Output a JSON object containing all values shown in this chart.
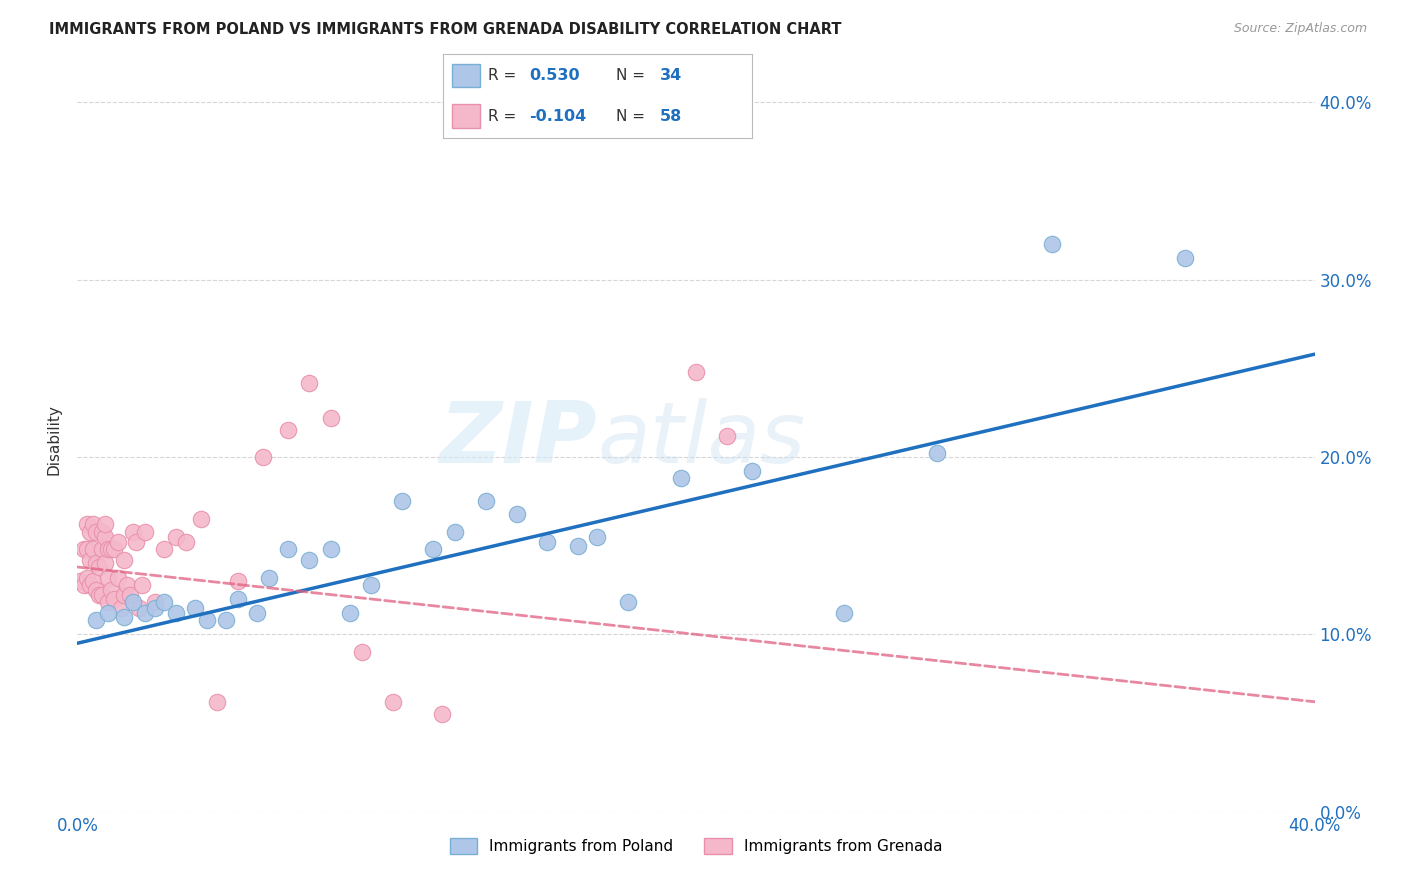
{
  "title": "IMMIGRANTS FROM POLAND VS IMMIGRANTS FROM GRENADA DISABILITY CORRELATION CHART",
  "source": "Source: ZipAtlas.com",
  "ylabel": "Disability",
  "xlim": [
    0.0,
    0.4
  ],
  "ylim": [
    0.0,
    0.42
  ],
  "ytick_vals": [
    0.0,
    0.1,
    0.2,
    0.3,
    0.4
  ],
  "xtick_vals": [
    0.0,
    0.1,
    0.2,
    0.3,
    0.4
  ],
  "poland_color": "#aec6e8",
  "grenada_color": "#f5b8cb",
  "poland_edge": "#7aafd4",
  "grenada_edge": "#e890aa",
  "trendline_poland_color": "#2070c0",
  "trendline_grenada_color": "#e06080",
  "R_poland": 0.53,
  "N_poland": 34,
  "R_grenada": -0.104,
  "N_grenada": 58,
  "legend_text_color": "#2070c0",
  "background_color": "#ffffff",
  "grid_color": "#cccccc",
  "watermark_zip": "ZIP",
  "watermark_atlas": "atlas",
  "poland_x": [
    0.006,
    0.01,
    0.015,
    0.018,
    0.022,
    0.025,
    0.028,
    0.032,
    0.038,
    0.042,
    0.048,
    0.052,
    0.058,
    0.062,
    0.068,
    0.075,
    0.082,
    0.088,
    0.095,
    0.105,
    0.115,
    0.122,
    0.132,
    0.142,
    0.152,
    0.162,
    0.168,
    0.178,
    0.195,
    0.218,
    0.248,
    0.278,
    0.315,
    0.358
  ],
  "poland_y": [
    0.108,
    0.112,
    0.11,
    0.118,
    0.112,
    0.115,
    0.118,
    0.112,
    0.115,
    0.108,
    0.108,
    0.12,
    0.112,
    0.132,
    0.148,
    0.142,
    0.148,
    0.112,
    0.128,
    0.175,
    0.148,
    0.158,
    0.175,
    0.168,
    0.152,
    0.15,
    0.155,
    0.118,
    0.188,
    0.192,
    0.112,
    0.202,
    0.32,
    0.312
  ],
  "grenada_x": [
    0.001,
    0.002,
    0.002,
    0.003,
    0.003,
    0.003,
    0.004,
    0.004,
    0.004,
    0.005,
    0.005,
    0.005,
    0.006,
    0.006,
    0.006,
    0.007,
    0.007,
    0.008,
    0.008,
    0.008,
    0.009,
    0.009,
    0.009,
    0.01,
    0.01,
    0.01,
    0.011,
    0.011,
    0.012,
    0.012,
    0.013,
    0.013,
    0.014,
    0.015,
    0.015,
    0.016,
    0.017,
    0.018,
    0.019,
    0.02,
    0.021,
    0.022,
    0.025,
    0.028,
    0.032,
    0.035,
    0.04,
    0.045,
    0.052,
    0.06,
    0.068,
    0.075,
    0.082,
    0.092,
    0.102,
    0.118,
    0.2,
    0.21
  ],
  "grenada_y": [
    0.13,
    0.128,
    0.148,
    0.132,
    0.148,
    0.162,
    0.128,
    0.142,
    0.158,
    0.13,
    0.148,
    0.162,
    0.125,
    0.14,
    0.158,
    0.122,
    0.138,
    0.122,
    0.148,
    0.158,
    0.14,
    0.155,
    0.162,
    0.118,
    0.132,
    0.148,
    0.125,
    0.148,
    0.12,
    0.148,
    0.132,
    0.152,
    0.115,
    0.122,
    0.142,
    0.128,
    0.122,
    0.158,
    0.152,
    0.115,
    0.128,
    0.158,
    0.118,
    0.148,
    0.155,
    0.152,
    0.165,
    0.062,
    0.13,
    0.2,
    0.215,
    0.242,
    0.222,
    0.09,
    0.062,
    0.055,
    0.248,
    0.212
  ],
  "trendline_poland_x0": 0.0,
  "trendline_poland_y0": 0.095,
  "trendline_poland_x1": 0.4,
  "trendline_poland_y1": 0.258,
  "trendline_grenada_x0": 0.0,
  "trendline_grenada_y0": 0.138,
  "trendline_grenada_x1": 0.4,
  "trendline_grenada_y1": 0.062
}
